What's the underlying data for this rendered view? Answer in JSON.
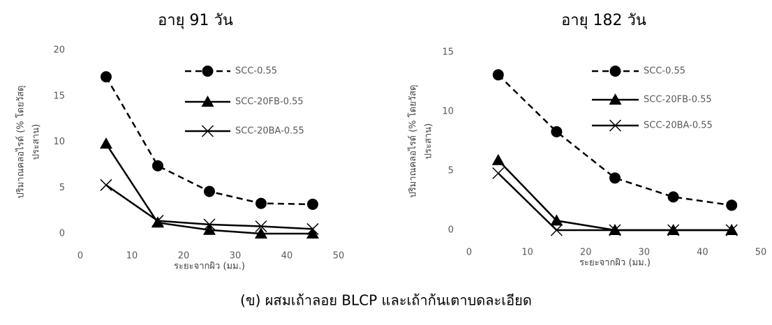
{
  "chart_data": [
    {
      "type": "line",
      "title": "อายุ 91 วัน",
      "x_label": "ระยะจากผิว (มม.)",
      "y_label": [
        "ปริมาณคลอไรด์ (% โดยวัสดุ",
        "ประสาน)"
      ],
      "x": [
        5,
        15,
        25,
        35,
        45
      ],
      "xlim": [
        0,
        50
      ],
      "xticks": [
        0,
        10,
        20,
        30,
        40,
        50
      ],
      "ylim": [
        0,
        20
      ],
      "yticks": [
        0,
        5,
        10,
        15,
        20
      ],
      "grid": false,
      "series": [
        {
          "name": "SCC-0.55",
          "color": "#000000",
          "dash": true,
          "marker": "circle",
          "values": [
            17.1,
            7.4,
            4.6,
            3.3,
            3.2
          ]
        },
        {
          "name": "SCC-20FB-0.55",
          "color": "#000000",
          "dash": false,
          "marker": "triangle",
          "values": [
            9.8,
            1.2,
            0.4,
            0.0,
            0.0
          ]
        },
        {
          "name": "SCC-20BA-0.55",
          "color": "#000000",
          "dash": false,
          "marker": "x",
          "values": [
            5.3,
            1.4,
            1.0,
            0.8,
            0.5
          ]
        }
      ]
    },
    {
      "type": "line",
      "title": "อายุ 182 วัน",
      "x_label": "ระยะจากผิว (มม.)",
      "y_label": [
        "ปริมาณคลอไรด์ (% โดยวัสดุ",
        "ประสาน)"
      ],
      "x": [
        5,
        15,
        25,
        35,
        45
      ],
      "xlim": [
        0,
        50
      ],
      "xticks": [
        0,
        10,
        20,
        30,
        40,
        50
      ],
      "ylim": [
        0,
        15
      ],
      "yticks": [
        0,
        5,
        10,
        15
      ],
      "grid": false,
      "series": [
        {
          "name": "SCC-0.55",
          "color": "#000000",
          "dash": true,
          "marker": "circle",
          "values": [
            13.1,
            8.3,
            4.4,
            2.8,
            2.1
          ]
        },
        {
          "name": "SCC-20FB-0.55",
          "color": "#000000",
          "dash": false,
          "marker": "triangle",
          "values": [
            5.9,
            0.8,
            0.0,
            0.0,
            0.0
          ]
        },
        {
          "name": "SCC-20BA-0.55",
          "color": "#000000",
          "dash": false,
          "marker": "x",
          "values": [
            4.8,
            0.0,
            0.0,
            0.0,
            0.0
          ]
        }
      ]
    }
  ],
  "caption": "(ข)  ผสมเถ้าลอย BLCP และเถ้าก้นเตาบดละเอียด"
}
